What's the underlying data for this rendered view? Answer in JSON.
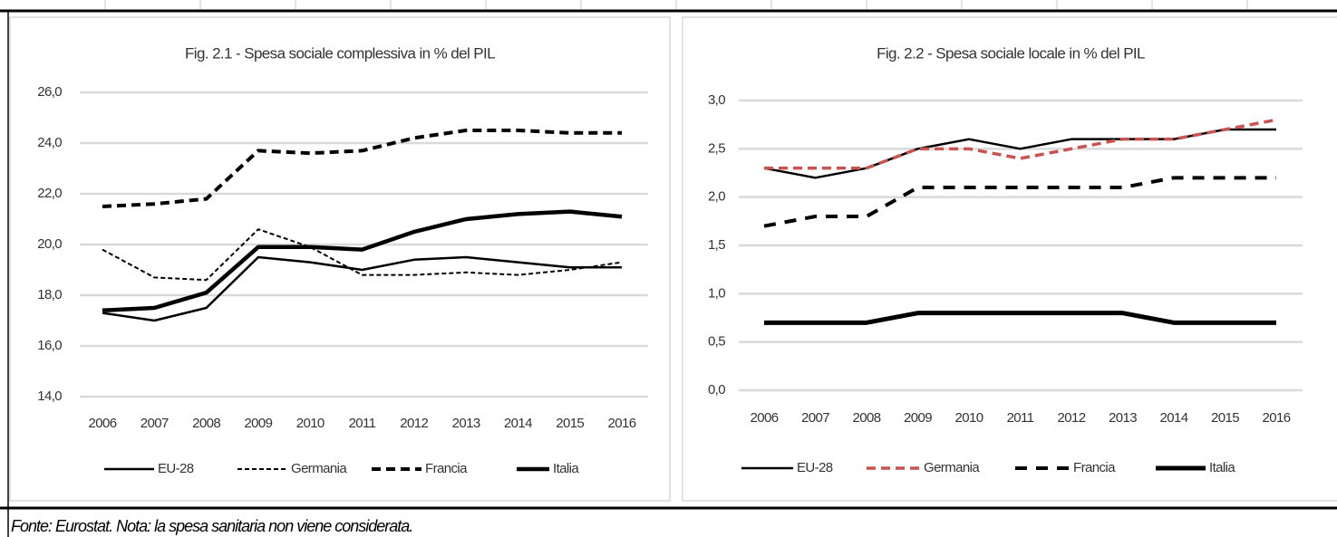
{
  "chart_data": [
    {
      "type": "line",
      "title": "Fig. 2.1 - Spesa sociale complessiva in % del PIL",
      "categories": [
        "2006",
        "2007",
        "2008",
        "2009",
        "2010",
        "2011",
        "2012",
        "2013",
        "2014",
        "2015",
        "2016"
      ],
      "ylim": [
        14,
        26
      ],
      "yticks": [
        {
          "value": 14,
          "label": "14,0"
        },
        {
          "value": 16,
          "label": "16,0"
        },
        {
          "value": 18,
          "label": "18,0"
        },
        {
          "value": 20,
          "label": "20,0"
        },
        {
          "value": 22,
          "label": "22,0"
        },
        {
          "value": 24,
          "label": "24,0"
        },
        {
          "value": 26,
          "label": "26,0"
        }
      ],
      "grid": true,
      "legend": "bottom",
      "series": [
        {
          "name": "EU-28",
          "color": "#000000",
          "line_style": "solid",
          "line_width": 2.5,
          "values": [
            17.3,
            17.0,
            17.5,
            19.5,
            19.3,
            19.0,
            19.4,
            19.5,
            19.3,
            19.1,
            19.1
          ]
        },
        {
          "name": "Germania",
          "color": "#000000",
          "line_style": "dotted",
          "line_width": 2,
          "values": [
            19.8,
            18.7,
            18.6,
            20.6,
            19.9,
            18.8,
            18.8,
            18.9,
            18.8,
            19.0,
            19.3
          ]
        },
        {
          "name": "Francia",
          "color": "#000000",
          "line_style": "dashed",
          "line_width": 4,
          "values": [
            21.5,
            21.6,
            21.8,
            23.7,
            23.6,
            23.7,
            24.2,
            24.5,
            24.5,
            24.4,
            24.4
          ]
        },
        {
          "name": "Italia",
          "color": "#000000",
          "line_style": "solid",
          "line_width": 4.5,
          "values": [
            17.4,
            17.5,
            18.1,
            19.9,
            19.9,
            19.8,
            20.5,
            21.0,
            21.2,
            21.3,
            21.1
          ]
        }
      ]
    },
    {
      "type": "line",
      "title": "Fig. 2.2 - Spesa sociale locale in % del PIL",
      "categories": [
        "2006",
        "2007",
        "2008",
        "2009",
        "2010",
        "2011",
        "2012",
        "2013",
        "2014",
        "2015",
        "2016"
      ],
      "ylim": [
        0,
        3
      ],
      "yticks": [
        {
          "value": 0,
          "label": "0,0"
        },
        {
          "value": 0.5,
          "label": "0,5"
        },
        {
          "value": 1,
          "label": "1,0"
        },
        {
          "value": 1.5,
          "label": "1,5"
        },
        {
          "value": 2,
          "label": "2,0"
        },
        {
          "value": 2.5,
          "label": "2,5"
        },
        {
          "value": 3,
          "label": "3,0"
        }
      ],
      "grid": true,
      "legend": "bottom",
      "series": [
        {
          "name": "EU-28",
          "color": "#000000",
          "line_style": "solid",
          "line_width": 2.5,
          "values": [
            2.3,
            2.2,
            2.3,
            2.5,
            2.6,
            2.5,
            2.6,
            2.6,
            2.6,
            2.7,
            2.7
          ]
        },
        {
          "name": "Germania",
          "color": "#c9534f",
          "line_style": "dashed",
          "line_width": 3.5,
          "values": [
            2.3,
            2.3,
            2.3,
            2.5,
            2.5,
            2.4,
            2.5,
            2.6,
            2.6,
            2.7,
            2.8
          ]
        },
        {
          "name": "Francia",
          "color": "#000000",
          "line_style": "wide-dashed",
          "line_width": 4,
          "values": [
            1.7,
            1.8,
            1.8,
            2.1,
            2.1,
            2.1,
            2.1,
            2.1,
            2.2,
            2.2,
            2.2
          ]
        },
        {
          "name": "Italia",
          "color": "#000000",
          "line_style": "solid",
          "line_width": 5,
          "values": [
            0.7,
            0.7,
            0.7,
            0.8,
            0.8,
            0.8,
            0.8,
            0.8,
            0.7,
            0.7,
            0.7
          ]
        }
      ]
    }
  ],
  "note": "Fonte: Eurostat. Nota: la spesa sanitaria non viene considerata."
}
